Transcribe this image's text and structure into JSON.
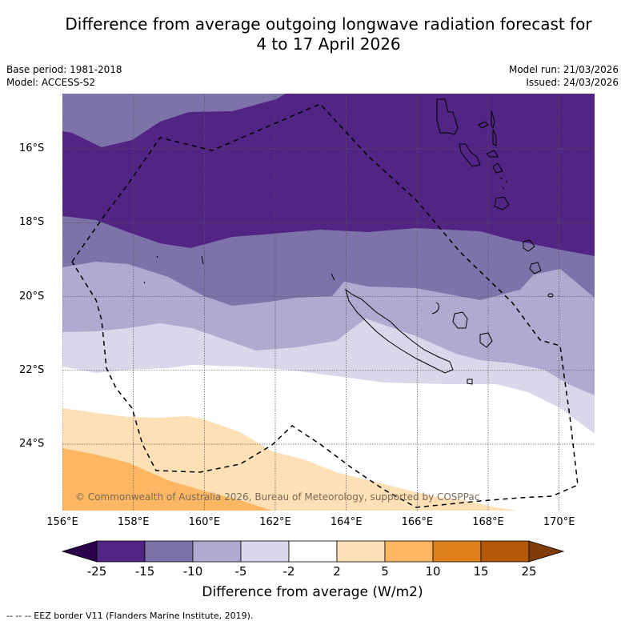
{
  "title": {
    "line1": "Difference from average outgoing longwave radiation forecast for",
    "line2": "4 to 17 April 2026"
  },
  "meta_left": {
    "base_period": "Base period: 1981-2018",
    "model": "Model: ACCESS-S2"
  },
  "meta_right": {
    "model_run": "Model run: 21/03/2026",
    "issued": "Issued: 24/03/2026"
  },
  "map": {
    "lon_range": [
      156,
      171
    ],
    "lat_range": [
      -14.5,
      -25.8
    ],
    "lat_ticks": [
      {
        "value": -16,
        "label": "16°S"
      },
      {
        "value": -18,
        "label": "18°S"
      },
      {
        "value": -20,
        "label": "20°S"
      },
      {
        "value": -22,
        "label": "22°S"
      },
      {
        "value": -24,
        "label": "24°S"
      }
    ],
    "lon_ticks": [
      {
        "value": 156,
        "label": "156°E"
      },
      {
        "value": 158,
        "label": "158°E"
      },
      {
        "value": 160,
        "label": "160°E"
      },
      {
        "value": 162,
        "label": "162°E"
      },
      {
        "value": 164,
        "label": "164°E"
      },
      {
        "value": 166,
        "label": "166°E"
      },
      {
        "value": 168,
        "label": "168°E"
      },
      {
        "value": 170,
        "label": "170°E"
      }
    ],
    "copyright": "© Commonwealth of Australia 2026, Bureau of Meteorology, supported by COSPPac",
    "features": [
      "New Caledonia",
      "Vanuatu",
      "Loyalty Islands",
      "EEZ border"
    ]
  },
  "colorbar": {
    "title": "Difference from average (W/m2)",
    "boundaries": [
      "-25",
      "-15",
      "-10",
      "-5",
      "-2",
      "2",
      "5",
      "10",
      "15",
      "25"
    ],
    "colors": [
      "#522584",
      "#7e72aa",
      "#b0a9d0",
      "#d8d8ea",
      "#ffffff",
      "#fde0b6",
      "#fdb762",
      "#e0801b",
      "#b35806"
    ],
    "under_color": "#2d004b",
    "over_color": "#7f3b08"
  },
  "footnote": "--  --  -- EEZ border V11 (Flanders Marine Institute, 2019)."
}
